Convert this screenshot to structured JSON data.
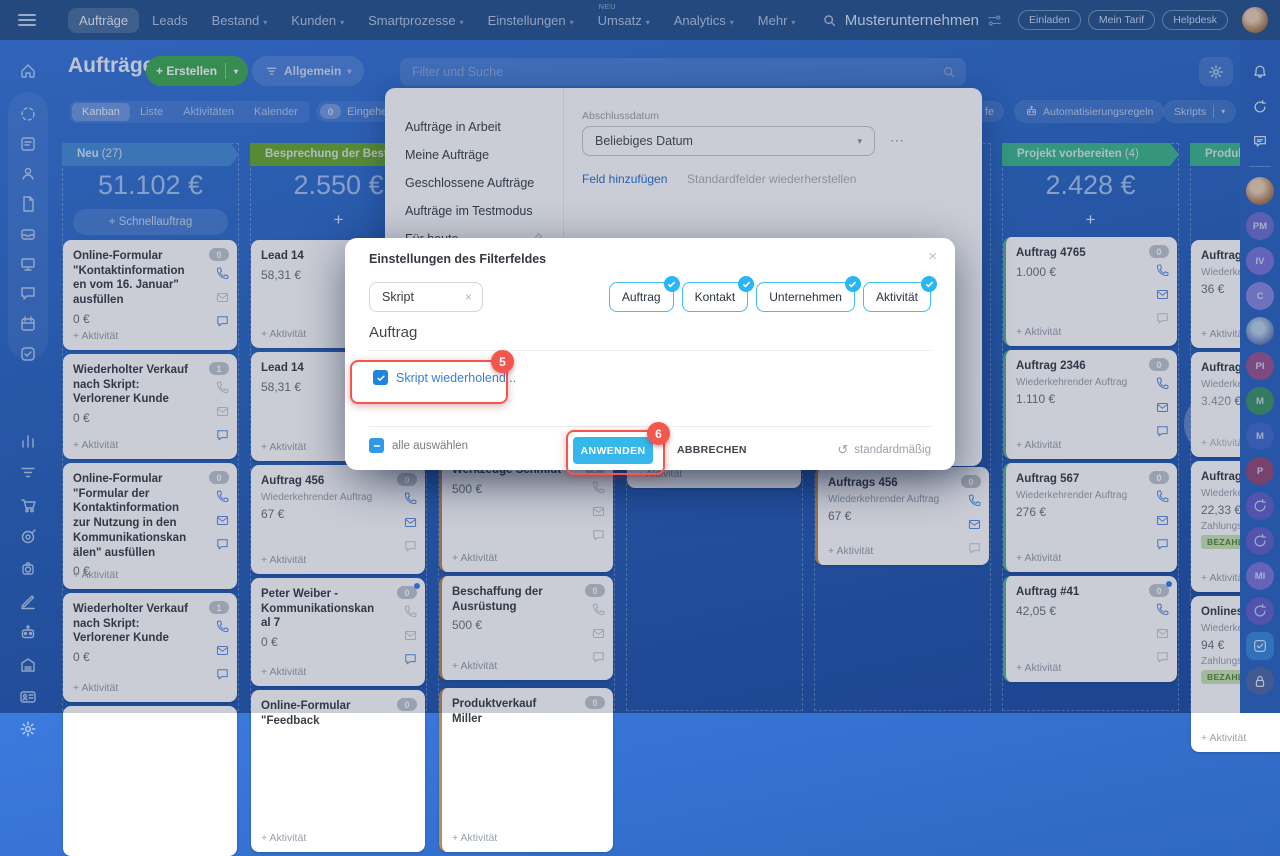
{
  "topbar": {
    "company": "Musterunternehmen",
    "nav": [
      {
        "label": "Aufträge",
        "active": true
      },
      {
        "label": "Leads"
      },
      {
        "label": "Bestand",
        "chevron": true
      },
      {
        "label": "Kunden",
        "chevron": true
      },
      {
        "label": "Smartprozesse",
        "chevron": true
      },
      {
        "label": "Einstellungen",
        "chevron": true
      },
      {
        "label": "Umsatz",
        "chevron": true,
        "badge": "NEU"
      },
      {
        "label": "Analytics",
        "chevron": true
      },
      {
        "label": "Mehr",
        "chevron": true
      }
    ],
    "actions": [
      "Einladen",
      "Mein Tarif",
      "Helpdesk"
    ]
  },
  "header": {
    "title": "Aufträge",
    "create_label": "+ Erstellen",
    "filter_label": "Allgemein",
    "search_placeholder": "Filter und Suche"
  },
  "tabs": {
    "items": [
      {
        "label": "Kanban",
        "active": true
      },
      {
        "label": "Liste"
      },
      {
        "label": "Aktivitäten"
      },
      {
        "label": "Kalender"
      }
    ],
    "inbox_count": "0",
    "inbox_label": "Eingehende",
    "right_partial": "fe",
    "automation_label": "Automatisierungsregeln",
    "scripts_label": "Skripts"
  },
  "filter_panel": {
    "presets": [
      "Aufträge in Arbeit",
      "Meine Aufträge",
      "Geschlossene Aufträge",
      "Aufträge im Testmodus",
      "Für heute"
    ],
    "field_label": "Abschlussdatum",
    "field_value": "Beliebiges Datum",
    "add_field_label": "Feld hinzufügen",
    "restore_label": "Standardfelder wiederherstellen"
  },
  "modal": {
    "title": "Einstellungen des Filterfeldes",
    "chip_value": "Skript",
    "tags": [
      "Auftrag",
      "Kontakt",
      "Unternehmen",
      "Aktivität"
    ],
    "section_title": "Auftrag",
    "option_label": "Skript wiederholend...",
    "select_all_label": "alle auswählen",
    "apply_label": "ANWENDEN",
    "cancel_label": "ABBRECHEN",
    "reset_label": "standardmäßig",
    "annotation_5": "5",
    "annotation_6": "6"
  },
  "board": {
    "activity_label": "+ Aktivität",
    "columns": [
      {
        "name": "Neu",
        "count": "(27)",
        "color": "#4a8dd9",
        "total": "51.102 €",
        "quick_add": "+ Schnellauftrag",
        "cards": [
          {
            "title": "Online-Formular \"Kontaktinformationen vom 16. Januar\" ausfüllen",
            "price": "0 €",
            "badge": "0",
            "icons": [
              "phone-on",
              "mail-off",
              "chat-on"
            ]
          },
          {
            "title": "Wiederholter Verkauf nach Skript: Verlorener Kunde",
            "price": "0 €",
            "badge": "1",
            "icons": [
              "phone-off",
              "mail-off",
              "chat-on"
            ]
          },
          {
            "title": "Online-Formular \"Formular der Kontaktinformation zur Nutzung in den Kommunikationskanälen\" ausfüllen",
            "price": "0 €",
            "badge": "0",
            "icons": [
              "phone-on",
              "mail-on",
              "chat-on"
            ]
          },
          {
            "title": "Wiederholter Verkauf nach Skript: Verlorener Kunde",
            "price": "0 €",
            "badge": "1",
            "icons": [
              "phone-on",
              "mail-on",
              "chat-on"
            ]
          },
          {
            "title": "",
            "partial": true
          }
        ]
      },
      {
        "name": "Besprechung der Bestellung",
        "count": "",
        "color": "#6ca932",
        "total": "2.550 €",
        "plus": true,
        "cards": [
          {
            "title": "Lead 14",
            "price": "58,31 €"
          },
          {
            "title": "Lead 14",
            "price": "58,31 €"
          },
          {
            "title": "Auftrag 456",
            "sub": "Wiederkehrender Auftrag",
            "price": "67 €",
            "badge": "0",
            "icons": [
              "phone-on",
              "mail-on",
              "chat-off"
            ]
          },
          {
            "title": "Peter Weiber - Kommunikationskanal 7",
            "price": "0 €",
            "badge": "0",
            "dot": true,
            "icons": [
              "phone-off",
              "mail-off",
              "chat-on"
            ]
          },
          {
            "title": "Online-Formular \"Feedback",
            "badge": "0"
          }
        ]
      },
      {
        "cards": [
          {
            "title": "Werkzeuge Schmidt",
            "price": "500 €",
            "badge": "0",
            "accent": "#c08b4e",
            "icons": [
              "phone-off",
              "mail-off",
              "chat-off"
            ]
          },
          {
            "title": "Beschaffung der Ausrüstung",
            "price": "500 €",
            "badge": "0",
            "accent": "#c08b4e",
            "icons": [
              "phone-off",
              "mail-off",
              "chat-off"
            ]
          },
          {
            "title": "Produktverkauf Miller",
            "badge": "0",
            "accent": "#c08b4e"
          }
        ]
      },
      {
        "cards": [
          {
            "title": "",
            "fragment": true
          }
        ]
      },
      {
        "cards": [
          {
            "title": "Auftrags 456",
            "sub": "Wiederkehrender Auftrag",
            "price": "67 €",
            "badge": "0",
            "accent": "#c08b4e",
            "icons": [
              "phone-on",
              "mail-on",
              "chat-off"
            ]
          }
        ]
      },
      {
        "name": "Projekt vorbereiten",
        "count": "(4)",
        "color": "#40b88e",
        "total": "2.428 €",
        "plus": true,
        "cards": [
          {
            "title": "Auftrag 4765",
            "price": "1.000 €",
            "badge": "0",
            "accent": "#57b394",
            "icons": [
              "phone-on",
              "mail-on",
              "chat-off"
            ]
          },
          {
            "title": "Auftrag 2346",
            "sub": "Wiederkehrender Auftrag",
            "price": "1.110 €",
            "badge": "0",
            "accent": "#57b394",
            "icons": [
              "phone-on",
              "mail-on",
              "chat-on"
            ]
          },
          {
            "title": "Auftrag 567",
            "sub": "Wiederkehrender Auftrag",
            "price": "276 €",
            "badge": "0",
            "accent": "#57b394",
            "icons": [
              "phone-on",
              "mail-on",
              "chat-on"
            ]
          },
          {
            "title": "Auftrag #41",
            "price": "42,05 €",
            "badge": "0",
            "dot": true,
            "accent": "#57b394",
            "icons": [
              "phone-on",
              "mail-off",
              "chat-off"
            ]
          }
        ]
      },
      {
        "name": "Produktlieferung",
        "count": "",
        "color": "#40b88e",
        "cards": [
          {
            "title": "Auftrag",
            "sub": "Wiederkehrender Auftrag",
            "price": "36 €"
          },
          {
            "title": "Auftrag",
            "sub": "Wiederkehrender Auftrag",
            "price": "3.420 €"
          },
          {
            "title": "Auftrag",
            "sub": "Wiederkehrender Auftrag",
            "price": "22,33 €",
            "pay_label": "Zahlungsstatus",
            "pay_status": "BEZAHLT"
          },
          {
            "title": "Onlineshop",
            "sub": "Wiederkehrender Auftrag",
            "price": "94 €",
            "pay_label": "Zahlungsstatus",
            "pay_status": "BEZAHLT"
          }
        ]
      }
    ]
  },
  "sidebar": {
    "icons": [
      "home",
      "pipeline",
      "feed",
      "contacts",
      "documents",
      "inbox",
      "dashboard",
      "chat",
      "calendar",
      "tasks",
      "stats",
      "funnel",
      "shop",
      "goals",
      "media",
      "sign",
      "bots",
      "archive",
      "id-card",
      "settings"
    ]
  },
  "rail": {
    "items": [
      {
        "kind": "bell"
      },
      {
        "kind": "sync"
      },
      {
        "kind": "chat"
      },
      {
        "kind": "divider"
      },
      {
        "kind": "photo1",
        "label": ""
      },
      {
        "kind": "user",
        "label": "PM",
        "color": "#7d74d8"
      },
      {
        "kind": "user",
        "label": "IV",
        "color": "#8a7ce0"
      },
      {
        "kind": "user",
        "label": "C",
        "color": "#9b8fe4"
      },
      {
        "kind": "photo2",
        "label": ""
      },
      {
        "kind": "user",
        "label": "PI",
        "color": "#b0568a"
      },
      {
        "kind": "user",
        "label": "M",
        "color": "#43a05c"
      },
      {
        "kind": "user",
        "label": "M",
        "color": "#4a6fd0"
      },
      {
        "kind": "user",
        "label": "P",
        "color": "#a84a6e"
      },
      {
        "kind": "sync-badge"
      },
      {
        "kind": "sync-badge"
      },
      {
        "kind": "user",
        "label": "MI",
        "color": "#8a7ce0"
      },
      {
        "kind": "sync-badge"
      },
      {
        "kind": "task"
      },
      {
        "kind": "lock"
      }
    ]
  },
  "colors": {
    "annotation_red": "#f4564e",
    "apply_cyan": "#35b7ec",
    "tag_border_cyan": "#40bdf4",
    "link_blue": "#2e73cc",
    "paid_green": "#5a8a2e"
  }
}
